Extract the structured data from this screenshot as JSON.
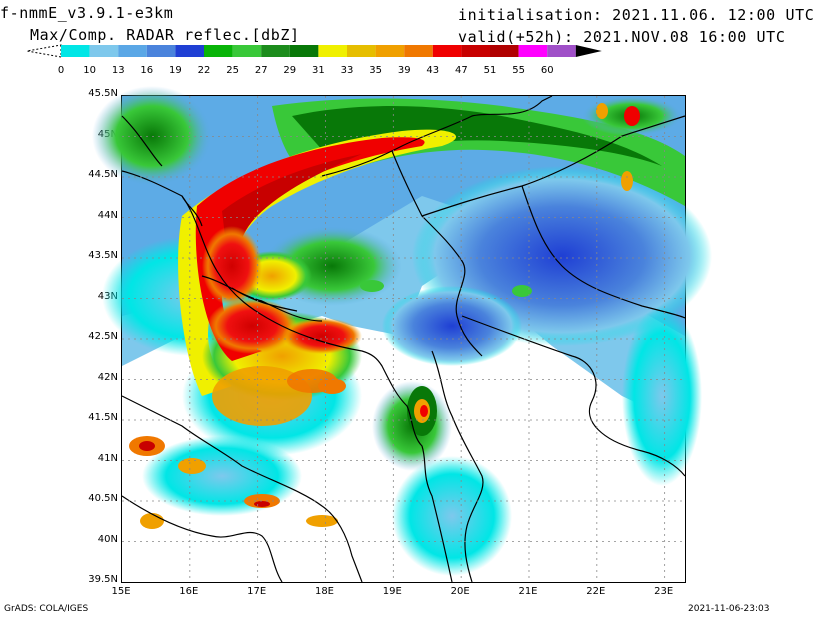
{
  "header": {
    "model": "f-nmmE_v3.9.1-e3km",
    "product": "Max/Comp. RADAR reflec.[dbZ]",
    "init": "initialisation: 2021.11.06. 12:00 UTC",
    "valid": "valid(+52h): 2021.NOV.08 16:00 UTC"
  },
  "colorbar": {
    "ticks": [
      "0",
      "10",
      "13",
      "16",
      "19",
      "22",
      "25",
      "27",
      "29",
      "31",
      "33",
      "35",
      "39",
      "43",
      "47",
      "51",
      "55",
      "60"
    ],
    "colors": [
      "#00e6e6",
      "#7ec8ec",
      "#5aa7e6",
      "#4a83dc",
      "#1f3fd4",
      "#08b408",
      "#39c839",
      "#1c8c1c",
      "#087808",
      "#f0f000",
      "#e6be00",
      "#f0a000",
      "#f07800",
      "#f00000",
      "#c80000",
      "#b00000",
      "#ff00ff",
      "#a050c8",
      "#000000"
    ]
  },
  "map": {
    "lat_labels": [
      "45.5N",
      "45N",
      "44.5N",
      "44N",
      "43.5N",
      "43N",
      "42.5N",
      "42N",
      "41.5N",
      "41N",
      "40.5N",
      "40N",
      "39.5N"
    ],
    "lon_labels": [
      "15E",
      "16E",
      "17E",
      "18E",
      "19E",
      "20E",
      "21E",
      "22E",
      "23E"
    ],
    "lat_range": [
      39.5,
      45.5
    ],
    "lon_range": [
      15,
      23.3
    ],
    "grid": "dotted",
    "region": "Adriatic / Balkans, southern Italy"
  },
  "footer": {
    "credit": "GrADS: COLA/IGES",
    "stamp": "2021-11-06-23:03"
  }
}
